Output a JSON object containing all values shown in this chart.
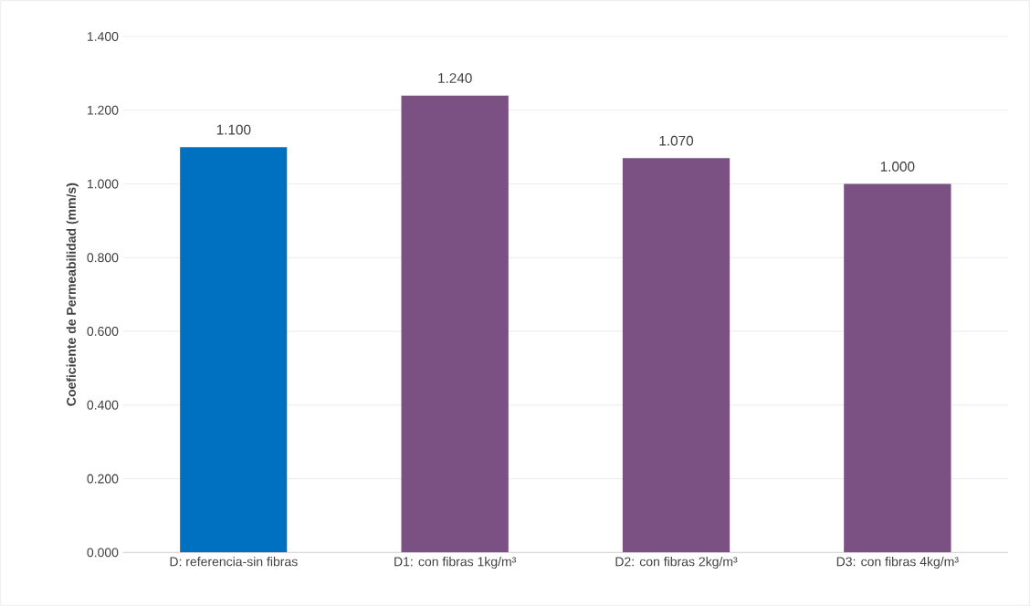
{
  "chart_data": {
    "type": "bar",
    "ylabel": "Coeficiente de Permeabilidad (mm/s)",
    "categories": [
      "D: referencia-sin fibras",
      "D1: con fibras 1kg/m³",
      "D2: con fibras 2kg/m³",
      "D3: con fibras 4kg/m³"
    ],
    "values": [
      1.1,
      1.24,
      1.07,
      1.0
    ],
    "colors": [
      "#0070c0",
      "#7b5184",
      "#7b5184",
      "#7b5184"
    ],
    "value_labels": [
      "1.100",
      "1.240",
      "1.070",
      "1.000"
    ],
    "ylim": [
      0,
      1.4
    ],
    "yticks": [
      {
        "value": 0,
        "label": "0.000"
      },
      {
        "value": 0.2,
        "label": "0.200"
      },
      {
        "value": 0.4,
        "label": "0.400"
      },
      {
        "value": 0.6,
        "label": "0.600"
      },
      {
        "value": 0.8,
        "label": "0.800"
      },
      {
        "value": 1.0,
        "label": "1.000"
      },
      {
        "value": 1.2,
        "label": "1.200"
      },
      {
        "value": 1.4,
        "label": "1.400"
      }
    ],
    "grid": "y"
  }
}
